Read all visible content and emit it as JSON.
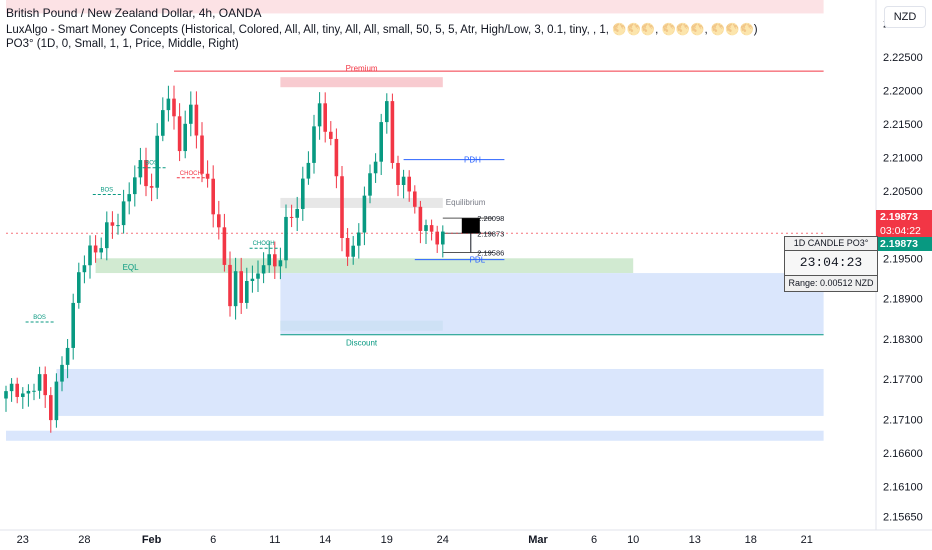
{
  "header": {
    "title": "British Pound / New Zealand Dollar, 4h, OANDA",
    "indicator1": "LuxAlgo - Smart Money Concepts (Historical, Colored, All, All, tiny, All, All, small, 50, 5, 5, Atr, High/Low, 3, 0.1, tiny, , 1, 🌕🌕🌕, 🌕🌕🌕, 🌕🌕🌕)",
    "indicator2": "PO3° (1D, 0, Small, 1, 1, Price, Middle, Right)"
  },
  "currency_label": "NZD",
  "price_tags": {
    "last_price": "2.19873",
    "countdown": "03:04:22",
    "ticker_price": "2.19873",
    "colors": {
      "red": "#f23645",
      "green": "#089981"
    }
  },
  "po3_panel": {
    "title": "1D CANDLE PO3°",
    "timer": "23:04:23",
    "range": "Range: 0.00512 NZD"
  },
  "chart_data": {
    "type": "candlestick",
    "symbol": "GBPNZD",
    "timeframe": "4h",
    "ylim": [
      2.1545,
      2.2335
    ],
    "y_ticks": [
      "2.23000",
      "2.22500",
      "2.22000",
      "2.21500",
      "2.21000",
      "2.20500",
      "2.20000",
      "2.19500",
      "2.18900",
      "2.18300",
      "2.17700",
      "2.17100",
      "2.16600",
      "2.16100",
      "2.15650"
    ],
    "x_ticks": [
      {
        "label": "23",
        "index": 3
      },
      {
        "label": "28",
        "index": 14
      },
      {
        "label": "Feb",
        "index": 26,
        "bold": true
      },
      {
        "label": "6",
        "index": 37
      },
      {
        "label": "11",
        "index": 48
      },
      {
        "label": "14",
        "index": 57
      },
      {
        "label": "19",
        "index": 68
      },
      {
        "label": "24",
        "index": 78
      },
      {
        "label": "Mar",
        "index": 95,
        "bold": true
      },
      {
        "label": "6",
        "index": 105
      },
      {
        "label": "10",
        "index": 112
      },
      {
        "label": "13",
        "index": 123
      },
      {
        "label": "18",
        "index": 133
      },
      {
        "label": "21",
        "index": 143
      }
    ],
    "close_path": [
      [
        0,
        2.1745
      ],
      [
        2,
        2.176
      ],
      [
        4,
        2.174
      ],
      [
        6,
        2.1775
      ],
      [
        8,
        2.172
      ],
      [
        10,
        2.1785
      ],
      [
        12,
        2.188
      ],
      [
        13,
        2.1925
      ],
      [
        15,
        2.196
      ],
      [
        17,
        2.1975
      ],
      [
        20,
        2.201
      ],
      [
        22,
        2.205
      ],
      [
        24,
        2.2085
      ],
      [
        26,
        2.206
      ],
      [
        28,
        2.2175
      ],
      [
        29,
        2.219
      ],
      [
        30,
        2.216
      ],
      [
        31,
        2.212
      ],
      [
        32,
        2.214
      ],
      [
        33,
        2.217
      ],
      [
        34,
        2.215
      ],
      [
        35,
        2.2075
      ],
      [
        36,
        2.206
      ],
      [
        37,
        2.202
      ],
      [
        38,
        2.199
      ],
      [
        39,
        2.1945
      ],
      [
        40,
        2.189
      ],
      [
        41,
        2.1915
      ],
      [
        42,
        2.188
      ],
      [
        43,
        2.193
      ],
      [
        44,
        2.1915
      ],
      [
        46,
        2.194
      ],
      [
        48,
        2.195
      ],
      [
        49,
        2.1955
      ],
      [
        50,
        2.1995
      ],
      [
        52,
        2.203
      ],
      [
        54,
        2.21
      ],
      [
        55,
        2.214
      ],
      [
        56,
        2.217
      ],
      [
        57,
        2.2155
      ],
      [
        58,
        2.213
      ],
      [
        59,
        2.206
      ],
      [
        60,
        2.1985
      ],
      [
        61,
        2.195
      ],
      [
        62,
        2.197
      ],
      [
        64,
        2.203
      ],
      [
        66,
        2.211
      ],
      [
        67,
        2.215
      ],
      [
        68,
        2.218
      ],
      [
        69,
        2.2095
      ],
      [
        70,
        2.205
      ],
      [
        71,
        2.208
      ],
      [
        72,
        2.206
      ],
      [
        73,
        2.201
      ],
      [
        74,
        2.199
      ],
      [
        75,
        2.201
      ],
      [
        76,
        2.1985
      ],
      [
        77,
        2.1975
      ],
      [
        78,
        2.1987
      ]
    ],
    "levels": [
      {
        "name": "premium-line",
        "label": "",
        "price": 2.2229,
        "from": 30,
        "to": 146,
        "color": "#f23645"
      },
      {
        "name": "pdh-line",
        "label": "PDH",
        "price": 2.2097,
        "from": 71,
        "to": 89,
        "color": "#2962ff"
      },
      {
        "name": "pdl-line",
        "label": "PDL",
        "price": 2.1948,
        "from": 73,
        "to": 89,
        "color": "#2962ff"
      },
      {
        "name": "discount-line",
        "label": "",
        "price": 2.1836,
        "from": 49,
        "to": 146,
        "color": "#089981"
      },
      {
        "name": "po3-high-line",
        "label": "2.20098",
        "price": 2.20098,
        "from": 78,
        "to": 87,
        "color": "#555555"
      },
      {
        "name": "po3-open-line",
        "label": "2.19873",
        "price": 2.19873,
        "from": 78,
        "to": 87,
        "color": "#555555"
      },
      {
        "name": "po3-low-line",
        "label": "2.19586",
        "price": 2.19586,
        "from": 78,
        "to": 87,
        "color": "#555555"
      },
      {
        "name": "current-price-line",
        "label": "",
        "price": 2.19873,
        "from": 0,
        "to": 146,
        "color": "#f23645",
        "dashed": true
      }
    ],
    "zones": [
      {
        "name": "premium-zone",
        "label": "Premium",
        "top": 2.222,
        "bottom": 2.2205,
        "from": 49,
        "to": 78,
        "color": "#f7c2c8"
      },
      {
        "name": "equilibrium-zone",
        "label": "Equilibrium",
        "top": 2.204,
        "bottom": 2.2025,
        "from": 49,
        "to": 78,
        "color": "#e3e3e3"
      },
      {
        "name": "discount-zone",
        "label": "Discount",
        "top": 2.1857,
        "bottom": 2.1842,
        "from": 49,
        "to": 78,
        "color": "#9fd4c9"
      },
      {
        "name": "demand-zone-1",
        "label": "EQL",
        "top": 2.195,
        "bottom": 2.1928,
        "from": 16,
        "to": 112,
        "color": "#c9e6c9"
      },
      {
        "name": "ob-zone-1",
        "label": "",
        "top": 2.1928,
        "bottom": 2.1836,
        "from": 49,
        "to": 146,
        "color": "#d4e2fc"
      },
      {
        "name": "ob-zone-2",
        "label": "",
        "top": 2.1785,
        "bottom": 2.1715,
        "from": 9,
        "to": 146,
        "color": "#d4e2fc"
      },
      {
        "name": "ob-zone-3",
        "label": "",
        "top": 2.1693,
        "bottom": 2.1678,
        "from": 0,
        "to": 146,
        "color": "#d4e2fc"
      },
      {
        "name": "top-alert-zone",
        "label": "",
        "top": 2.2395,
        "bottom": 2.2315,
        "from": 0,
        "to": 146,
        "color": "#fbdde1"
      }
    ],
    "structure_labels": [
      {
        "text": "BOS",
        "index": 6,
        "price": 2.1855,
        "color": "#089981"
      },
      {
        "text": "BOS",
        "index": 18,
        "price": 2.2045,
        "color": "#089981"
      },
      {
        "text": "BOS",
        "index": 26,
        "price": 2.2085,
        "color": "#089981"
      },
      {
        "text": "CHOCH",
        "index": 33,
        "price": 2.207,
        "color": "#f23645"
      },
      {
        "text": "CHOCH",
        "index": 46,
        "price": 2.1965,
        "color": "#089981"
      }
    ]
  }
}
